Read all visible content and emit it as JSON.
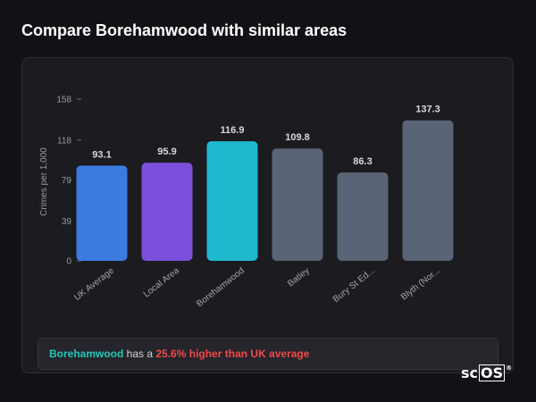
{
  "title": "Compare Borehamwood with similar areas",
  "chart_data": {
    "type": "bar",
    "ylabel": "Crimes per 1,000",
    "ylim": [
      0,
      158
    ],
    "yticks": [
      0,
      39,
      79,
      118,
      158
    ],
    "grid": false,
    "categories": [
      "UK Average",
      "Local Area",
      "Borehamwood",
      "Batley",
      "Bury St Ed...",
      "Blyth (Nor..."
    ],
    "values": [
      93.1,
      95.9,
      116.9,
      109.8,
      86.3,
      137.3
    ],
    "value_labels": [
      "93.1",
      "95.9",
      "116.9",
      "109.8",
      "86.3",
      "137.3"
    ],
    "colors": [
      "#3b7be0",
      "#7c4fdb",
      "#1fb9cf",
      "#5a6477",
      "#5a6477",
      "#5a6477"
    ]
  },
  "comparison": {
    "area": "Borehamwood",
    "middle": " has a ",
    "delta": "25.6% higher than UK average"
  },
  "brand": {
    "main": "sc",
    "boxed": "OS",
    "mark": "®"
  }
}
